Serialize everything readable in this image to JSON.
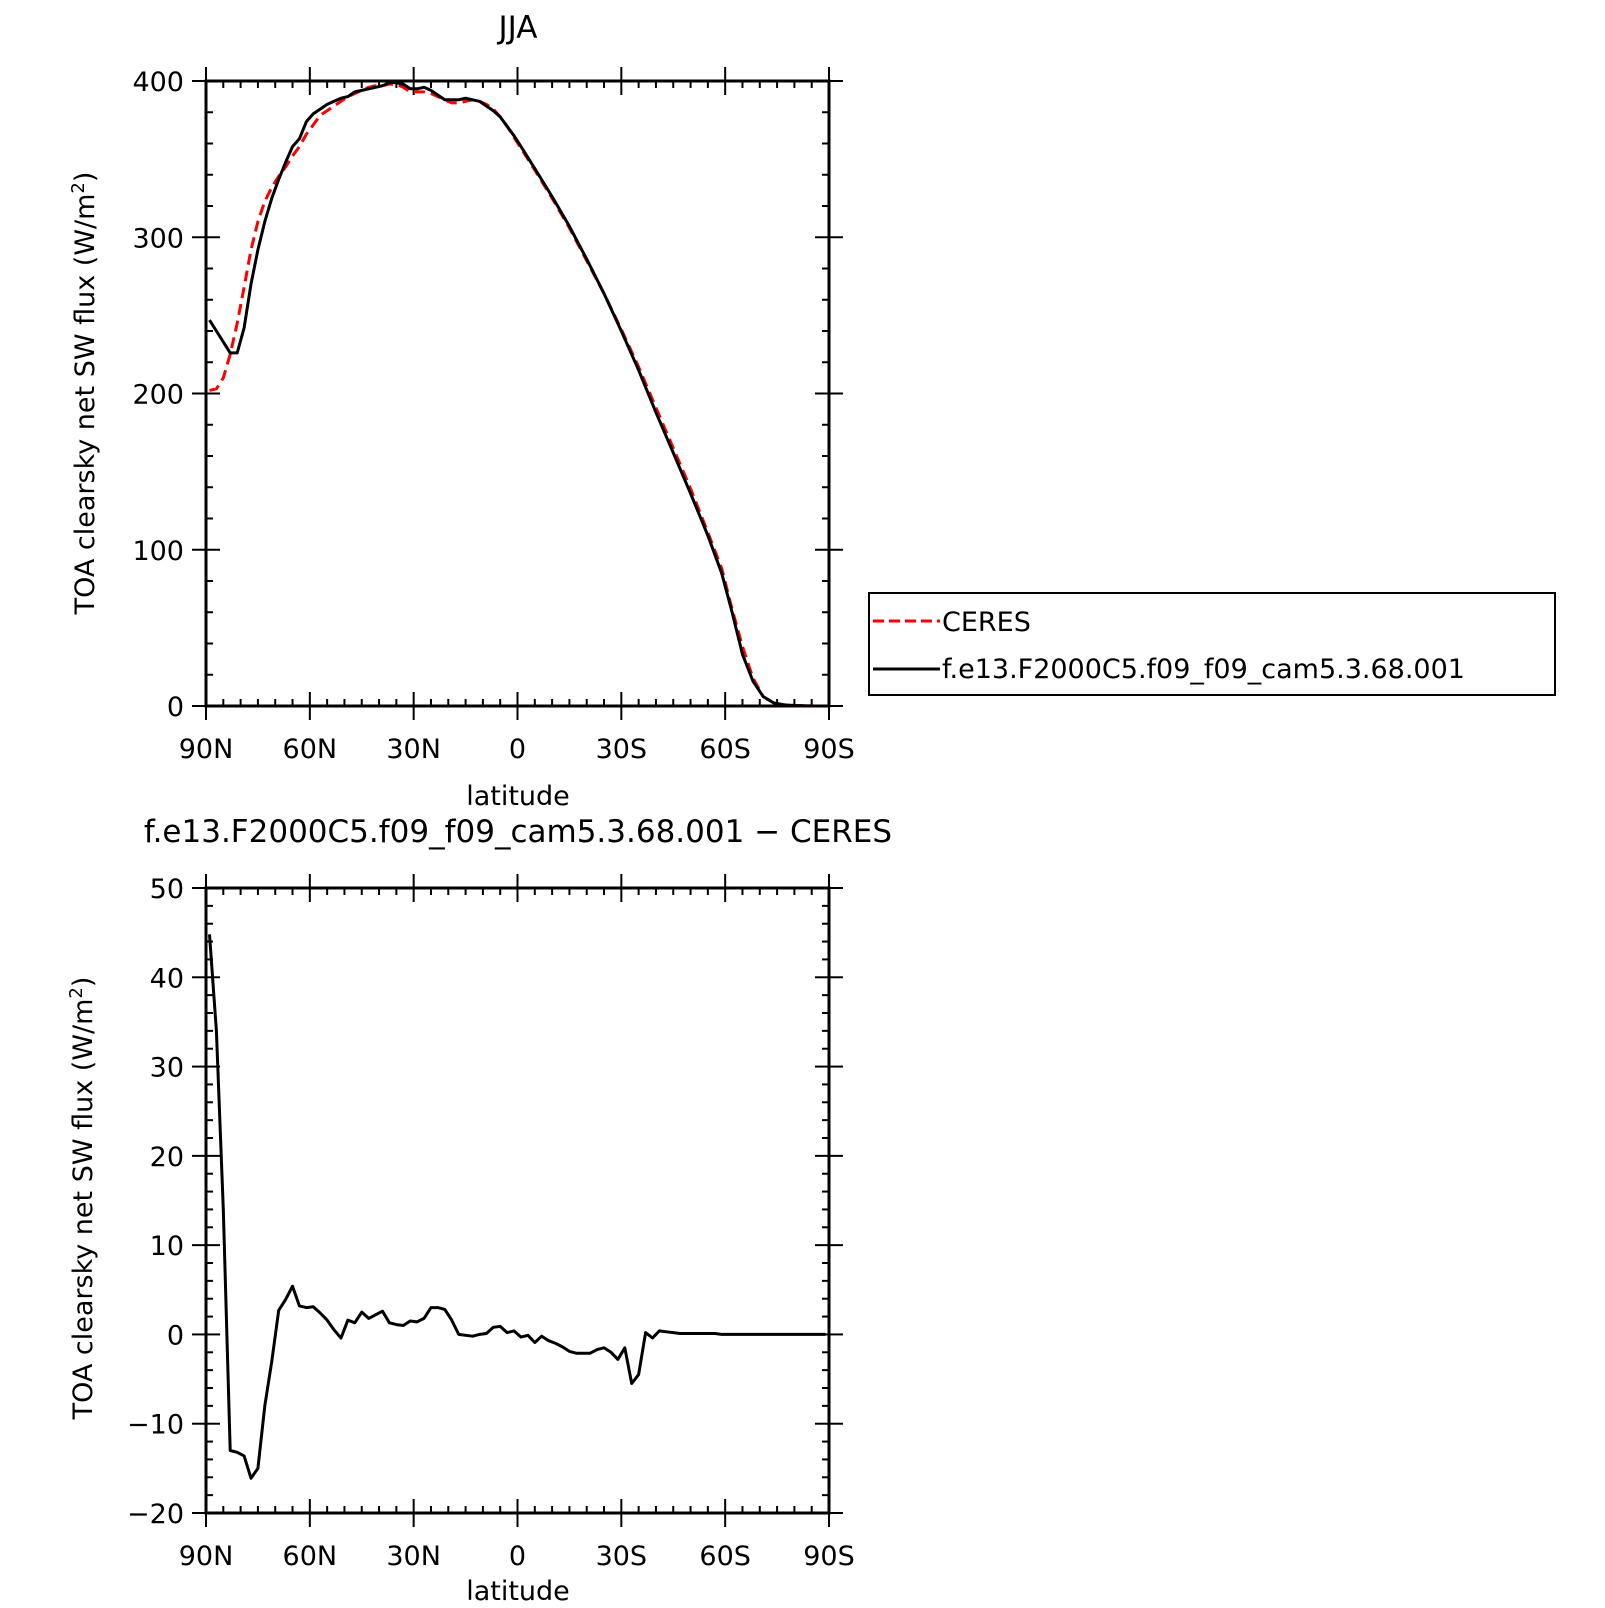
{
  "chart_data": [
    {
      "type": "line",
      "title": "JJA",
      "xlabel": "latitude",
      "ylabel": "TOA clearsky net SW flux (W/m²)",
      "ylabel_base": "TOA clearsky net SW flux (W/m",
      "ylabel_sup": "2",
      "ylabel_tail": ")",
      "xlim": [
        90,
        -90
      ],
      "ylim": [
        0,
        400
      ],
      "grid": false,
      "x_ticks": [
        90,
        60,
        30,
        0,
        -30,
        -60,
        -90
      ],
      "x_tick_labels": [
        "90N",
        "60N",
        "30N",
        "0",
        "30S",
        "60S",
        "90S"
      ],
      "y_ticks": [
        0,
        100,
        200,
        300,
        400
      ],
      "y_tick_labels": [
        "0",
        "100",
        "200",
        "300",
        "400"
      ],
      "legend_position": "right",
      "series": [
        {
          "name": "CERES",
          "color": "#ff0000",
          "dash": "dashed",
          "x": [
            89,
            87,
            85,
            83,
            81,
            79,
            77,
            75,
            73,
            71,
            69,
            67,
            65,
            63,
            61,
            59,
            57,
            55,
            53,
            51,
            49,
            47,
            45,
            43,
            41,
            39,
            37,
            35,
            33,
            31,
            29,
            27,
            25,
            23,
            21,
            19,
            17,
            15,
            13,
            11,
            9,
            7,
            5,
            3,
            1,
            -1,
            -3,
            -5,
            -10,
            -15,
            -20,
            -25,
            -30,
            -35,
            -40,
            -45,
            -50,
            -55,
            -59,
            -62,
            -65,
            -68,
            -71,
            -74,
            -77,
            -80,
            -83,
            -86,
            -89
          ],
          "y": [
            202,
            203,
            210,
            225,
            245,
            268,
            292,
            310,
            323,
            332,
            339,
            345,
            352,
            358,
            366,
            372,
            378,
            381,
            384,
            387,
            390,
            392,
            394,
            396,
            397,
            397,
            398,
            398,
            396,
            393,
            393,
            393,
            392,
            390,
            388,
            386,
            386,
            387,
            388,
            387,
            385,
            382,
            377,
            371,
            364,
            357,
            350,
            343,
            325,
            306,
            285,
            264,
            241,
            217,
            191,
            165,
            139,
            111,
            88,
            62,
            38,
            18,
            6,
            2,
            0.8,
            0.3,
            0.1,
            0,
            0
          ]
        },
        {
          "name": "f.e13.F2000C5.f09_f09_cam5.3.68.001",
          "color": "#000000",
          "dash": "solid",
          "x": [
            89,
            87,
            85,
            83,
            81,
            79,
            77,
            75,
            73,
            71,
            69,
            67,
            65,
            63,
            61,
            59,
            57,
            55,
            53,
            51,
            49,
            47,
            45,
            43,
            41,
            39,
            37,
            35,
            33,
            31,
            29,
            27,
            25,
            23,
            21,
            19,
            17,
            15,
            13,
            11,
            9,
            7,
            5,
            3,
            1,
            -1,
            -3,
            -5,
            -10,
            -15,
            -20,
            -25,
            -30,
            -35,
            -40,
            -45,
            -50,
            -55,
            -59,
            -62,
            -65,
            -68,
            -71,
            -74,
            -77,
            -80,
            -83,
            -86,
            -89
          ],
          "y": [
            247,
            240,
            233,
            226,
            226,
            242,
            270,
            292,
            310,
            325,
            337,
            348,
            358,
            363,
            374,
            379,
            382,
            385,
            387,
            389,
            390,
            393,
            394,
            395,
            396,
            397,
            399,
            399,
            398,
            395,
            395,
            396,
            394,
            391,
            388,
            388,
            388,
            389,
            388,
            387,
            384,
            381,
            377,
            371,
            365,
            358,
            351,
            344,
            326,
            307,
            286,
            264,
            240,
            215,
            188,
            162,
            136,
            109,
            85,
            60,
            33,
            16,
            6,
            2,
            0.7,
            0.3,
            0.1,
            0,
            0
          ]
        }
      ]
    },
    {
      "type": "line",
      "title": "f.e13.F2000C5.f09_f09_cam5.3.68.001 − CERES",
      "xlabel": "latitude",
      "ylabel": "TOA clearsky net SW flux (W/m²)",
      "ylabel_base": "TOA clearsky net SW flux (W/m",
      "ylabel_sup": "2",
      "ylabel_tail": ")",
      "xlim": [
        90,
        -90
      ],
      "ylim": [
        -20,
        50
      ],
      "grid": false,
      "x_ticks": [
        90,
        60,
        30,
        0,
        -30,
        -60,
        -90
      ],
      "x_tick_labels": [
        "90N",
        "60N",
        "30N",
        "0",
        "30S",
        "60S",
        "90S"
      ],
      "y_ticks": [
        -20,
        -10,
        0,
        10,
        20,
        30,
        40,
        50
      ],
      "y_tick_labels": [
        "−20",
        "−10",
        "0",
        "10",
        "20",
        "30",
        "40",
        "50"
      ],
      "series": [
        {
          "color": "#000000",
          "dash": "solid",
          "x": [
            89,
            87,
            85,
            83,
            81,
            79,
            77,
            75,
            73,
            71,
            69,
            67,
            65,
            63,
            61,
            59,
            57,
            55,
            53,
            51,
            49,
            47,
            45,
            43,
            41,
            39,
            37,
            35,
            33,
            31,
            29,
            27,
            25,
            23,
            21,
            19,
            17,
            15,
            13,
            11,
            9,
            7,
            5,
            3,
            1,
            -1,
            -3,
            -5,
            -7,
            -9,
            -11,
            -13,
            -15,
            -17,
            -19,
            -21,
            -23,
            -25,
            -27,
            -29,
            -31,
            -33,
            -35,
            -37,
            -39,
            -41,
            -43,
            -45,
            -47,
            -49,
            -51,
            -53,
            -55,
            -57,
            -59,
            -61,
            -63,
            -65,
            -67,
            -69,
            -71,
            -73,
            -75,
            -77,
            -79,
            -81,
            -83,
            -85,
            -87,
            -89
          ],
          "y": [
            44.8,
            34,
            14,
            -13,
            -13.2,
            -13.6,
            -16.1,
            -15,
            -8,
            -3,
            2.7,
            3.9,
            5.4,
            3.2,
            3,
            3.1,
            2.4,
            1.6,
            0.5,
            -0.4,
            1.6,
            1.3,
            2.5,
            1.8,
            2.2,
            2.6,
            1.3,
            1.1,
            1.0,
            1.5,
            1.4,
            1.8,
            3.0,
            3.0,
            2.8,
            1.6,
            0,
            -0.1,
            -0.2,
            0,
            0.1,
            0.8,
            0.9,
            0.2,
            0.4,
            -0.3,
            -0.1,
            -0.9,
            -0.2,
            -0.7,
            -1.0,
            -1.4,
            -1.9,
            -2.1,
            -2.1,
            -2.1,
            -1.7,
            -1.5,
            -2.0,
            -2.8,
            -1.5,
            -5.5,
            -4.5,
            0.2,
            -0.4,
            0.4,
            0.3,
            0.2,
            0.1,
            0.1,
            0.1,
            0.1,
            0.1,
            0.1,
            0,
            0,
            0,
            0,
            0,
            0,
            0,
            0,
            0,
            0,
            0,
            0,
            0,
            0,
            0,
            0
          ]
        }
      ]
    }
  ]
}
